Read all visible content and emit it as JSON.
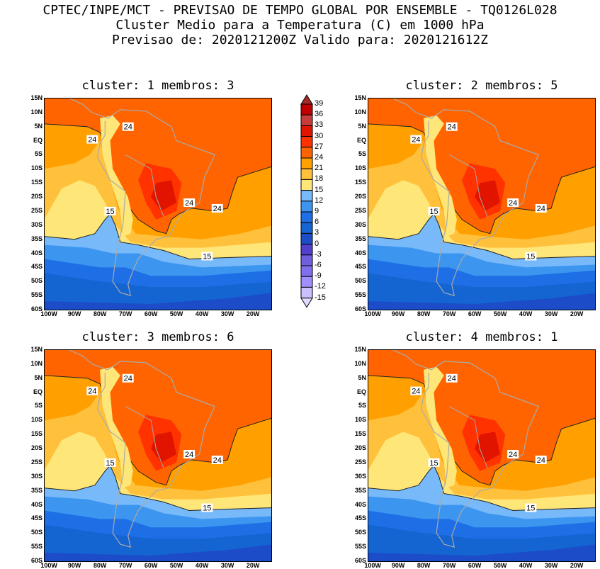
{
  "header": {
    "line1": "CPTEC/INPE/MCT - PREVISAO DE TEMPO GLOBAL POR ENSEMBLE - TQ0126L028",
    "line2": "Cluster Medio para a Temperatura (C) em 1000 hPa",
    "line3": "Previsao de: 2020121200Z   Valido para: 2020121612Z"
  },
  "panels": [
    {
      "title": "cluster: 1  membros: 3",
      "contour_labels": [
        "24",
        "24",
        "24",
        "24",
        "15",
        "15"
      ]
    },
    {
      "title": "cluster: 2  membros: 5",
      "contour_labels": [
        "24",
        "24",
        "24",
        "24",
        "15",
        "15"
      ]
    },
    {
      "title": "cluster: 3  membros: 6",
      "contour_labels": [
        "24",
        "24",
        "24",
        "24",
        "15",
        "15"
      ]
    },
    {
      "title": "cluster: 4  membros: 1",
      "contour_labels": [
        "24",
        "24",
        "24",
        "24",
        "15",
        "15"
      ]
    }
  ],
  "lat_ticks": [
    "15N",
    "10N",
    "5N",
    "EQ",
    "5S",
    "10S",
    "15S",
    "20S",
    "25S",
    "30S",
    "35S",
    "40S",
    "45S",
    "50S",
    "55S",
    "60S"
  ],
  "lon_ticks": [
    "100W",
    "90W",
    "80W",
    "70W",
    "60W",
    "50W",
    "40W",
    "30W",
    "20W"
  ],
  "colorbar": {
    "labels": [
      "39",
      "36",
      "33",
      "30",
      "27",
      "24",
      "21",
      "18",
      "15",
      "12",
      "9",
      "6",
      "3",
      "0",
      "-3",
      "-6",
      "-9",
      "-12",
      "-15"
    ],
    "colors": [
      "#a52a2a",
      "#c00000",
      "#c83c3c",
      "#e11400",
      "#ff3200",
      "#ff6400",
      "#ffa000",
      "#ffc03c",
      "#ffe678",
      "#78b9fa",
      "#3c96f0",
      "#1e6ee6",
      "#1464d2",
      "#1c4cc8",
      "#5040cc",
      "#7060dd",
      "#8070ee",
      "#a090ff",
      "#c8c0ff",
      "#e0dcff"
    ]
  }
}
